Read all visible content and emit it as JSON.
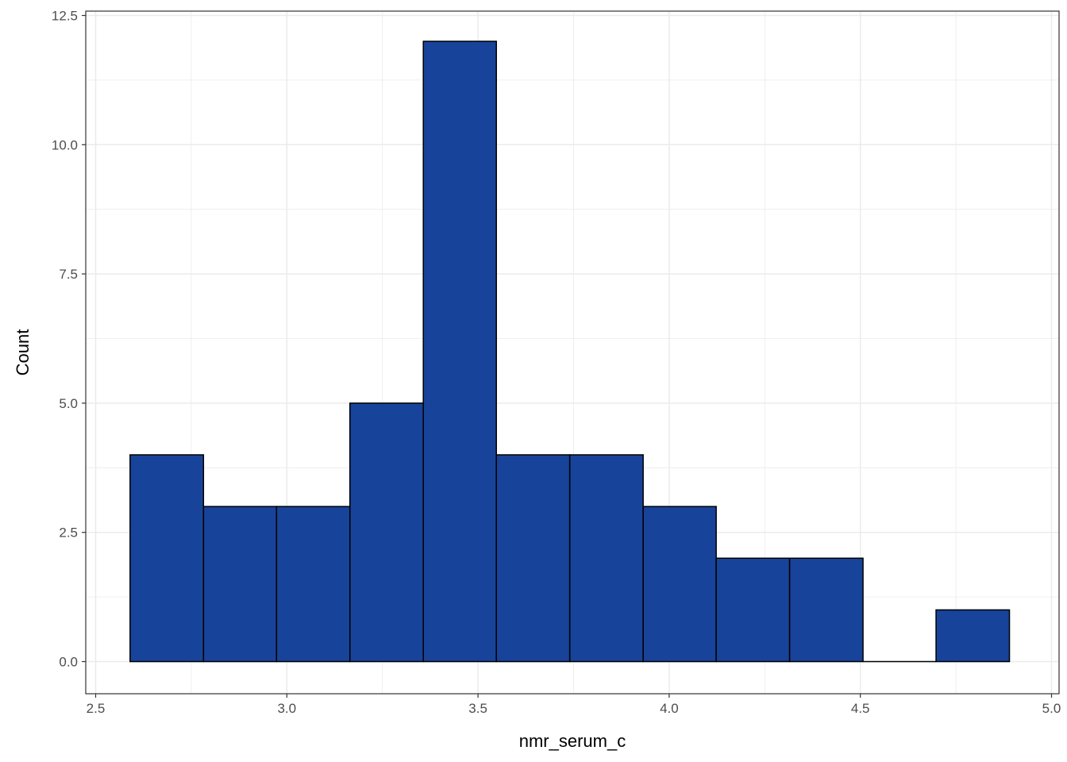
{
  "chart_data": {
    "type": "bar",
    "subtype": "histogram",
    "title": "",
    "xlabel": "nmr_serum_c",
    "ylabel": "Count",
    "xlim": [
      2.5,
      5.0
    ],
    "ylim": [
      0,
      12.5
    ],
    "x_ticks": [
      2.5,
      3.0,
      3.5,
      4.0,
      4.5,
      5.0
    ],
    "x_tick_labels": [
      "2.5",
      "3.0",
      "3.5",
      "4.0",
      "4.5",
      "5.0"
    ],
    "y_ticks": [
      0,
      2.5,
      5.0,
      7.5,
      10.0,
      12.5
    ],
    "y_tick_labels": [
      "0.0",
      "2.5",
      "5.0",
      "7.5",
      "10.0",
      "12.5"
    ],
    "bin_edges": [
      2.59,
      2.782,
      2.973,
      3.165,
      3.357,
      3.548,
      3.74,
      3.932,
      4.123,
      4.315,
      4.507,
      4.698,
      4.89
    ],
    "values": [
      4,
      3,
      3,
      5,
      12,
      4,
      4,
      3,
      2,
      2,
      0,
      1
    ],
    "grid": true,
    "legend": "none",
    "colors": {
      "bar_fill": "#18439a",
      "bar_stroke": "#000000",
      "grid": "#ebebeb",
      "panel_border": "#333333",
      "tick_text": "#4d4d4d"
    }
  }
}
